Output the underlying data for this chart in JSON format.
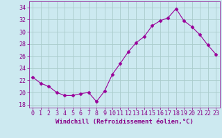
{
  "x": [
    0,
    1,
    2,
    3,
    4,
    5,
    6,
    7,
    8,
    9,
    10,
    11,
    12,
    13,
    14,
    15,
    16,
    17,
    18,
    19,
    20,
    21,
    22,
    23
  ],
  "y": [
    22.5,
    21.5,
    21.0,
    20.0,
    19.5,
    19.5,
    19.8,
    20.0,
    18.5,
    20.2,
    23.0,
    24.8,
    26.7,
    28.2,
    29.2,
    31.0,
    31.8,
    32.3,
    33.8,
    31.8,
    30.8,
    29.5,
    27.8,
    26.3
  ],
  "line_color": "#990099",
  "marker": "D",
  "marker_size": 2.5,
  "bg_color": "#cce9f0",
  "grid_color": "#aacccc",
  "ylim": [
    17.5,
    35.0
  ],
  "xlim": [
    -0.5,
    23.5
  ],
  "yticks": [
    18,
    20,
    22,
    24,
    26,
    28,
    30,
    32,
    34
  ],
  "xticks": [
    0,
    1,
    2,
    3,
    4,
    5,
    6,
    7,
    8,
    9,
    10,
    11,
    12,
    13,
    14,
    15,
    16,
    17,
    18,
    19,
    20,
    21,
    22,
    23
  ],
  "tick_color": "#880088",
  "label_fontsize": 6.0,
  "xlabel": "Windchill (Refroidissement éolien,°C)",
  "xlabel_fontsize": 6.5
}
